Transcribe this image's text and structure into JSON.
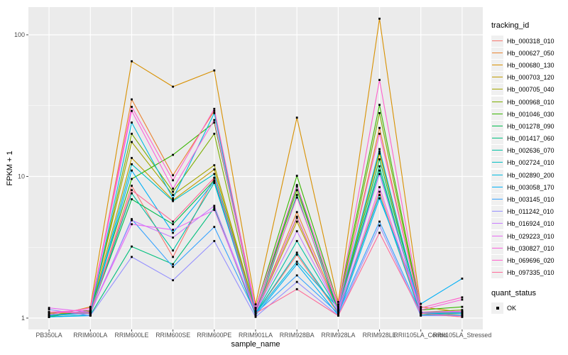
{
  "figure": {
    "background": "#FFFFFF",
    "panel_background": "#EBEBEB",
    "gridline_color": "#FFFFFF",
    "tick_label_color": "#4D4D4D",
    "axis_title_color": "#000000",
    "legend_key_background": "#F0F0F0",
    "point_color": "#000000"
  },
  "chart_data": {
    "type": "line",
    "title": "",
    "xlabel": "sample_name",
    "ylabel": "FPKM + 1",
    "y_scale": "log10",
    "y_ticks": [
      1,
      10,
      100
    ],
    "y_minor_ticks": [
      3.1623,
      31.623
    ],
    "ylim": [
      0.84,
      160
    ],
    "grid": true,
    "legend_position": "right",
    "legend_title": "tracking_id",
    "categories": [
      "PB350LA",
      "RRIM600LA",
      "RRIM600LE",
      "RRIM600SE",
      "RRIM600PE",
      "RRIM901LA",
      "RRIM928BA",
      "RRIM928LA",
      "RRIM928LE",
      "RRII105LA_Control",
      "RRII105LA_Stressed"
    ],
    "series": [
      {
        "name": "Hb_000318_010",
        "color": "#F8766D",
        "values": [
          1.1,
          1.08,
          8.6,
          2.7,
          9.8,
          1.08,
          2.8,
          1.08,
          7.8,
          1.08,
          1.02
        ]
      },
      {
        "name": "Hb_000627_050",
        "color": "#EA8331",
        "values": [
          1.05,
          1.1,
          35,
          10.2,
          29,
          1.1,
          5.6,
          1.15,
          22,
          1.1,
          1.05
        ]
      },
      {
        "name": "Hb_000680_130",
        "color": "#D89000",
        "values": [
          1.02,
          1.2,
          65,
          43,
          56,
          1.25,
          26,
          1.3,
          130,
          1.2,
          1.1
        ]
      },
      {
        "name": "Hb_000703_120",
        "color": "#C09B00",
        "values": [
          1.03,
          1.1,
          13.5,
          6.8,
          11.2,
          1.1,
          4.8,
          1.15,
          14.5,
          1.1,
          1.08
        ]
      },
      {
        "name": "Hb_000705_040",
        "color": "#A3A500",
        "values": [
          1.05,
          1.12,
          17.5,
          7.4,
          12.0,
          1.12,
          5.1,
          1.12,
          15.0,
          1.1,
          1.1
        ]
      },
      {
        "name": "Hb_000968_010",
        "color": "#7CAE00",
        "values": [
          1.08,
          1.1,
          20,
          7.8,
          20,
          1.1,
          8.0,
          1.18,
          28,
          1.1,
          1.14
        ]
      },
      {
        "name": "Hb_001046_030",
        "color": "#39B600",
        "values": [
          1.02,
          1.14,
          9.6,
          14.2,
          24,
          1.18,
          10.1,
          1.25,
          32,
          1.14,
          1.2
        ]
      },
      {
        "name": "Hb_001278_090",
        "color": "#00BB4E",
        "values": [
          1.05,
          1.1,
          6.9,
          4.6,
          9.4,
          1.1,
          8.5,
          1.12,
          13.2,
          1.1,
          1.1
        ]
      },
      {
        "name": "Hb_001417_060",
        "color": "#00BF7D",
        "values": [
          1.02,
          1.05,
          3.2,
          2.4,
          6.0,
          1.05,
          7.4,
          1.1,
          11.8,
          1.05,
          1.1
        ]
      },
      {
        "name": "Hb_002636_070",
        "color": "#00C1A3",
        "values": [
          1.04,
          1.08,
          7.6,
          3.0,
          9.0,
          1.08,
          3.5,
          1.14,
          11.0,
          1.08,
          1.08
        ]
      },
      {
        "name": "Hb_002724_010",
        "color": "#00BFC4",
        "values": [
          1.02,
          1.05,
          12.2,
          6.7,
          10.4,
          1.08,
          2.9,
          1.1,
          7.4,
          1.05,
          1.05
        ]
      },
      {
        "name": "Hb_002890_200",
        "color": "#00BAE0",
        "values": [
          1.05,
          1.08,
          24,
          7.0,
          28,
          1.08,
          2.5,
          1.18,
          15.6,
          1.08,
          1.08
        ]
      },
      {
        "name": "Hb_003058_170",
        "color": "#00B0F6",
        "values": [
          1.02,
          1.04,
          11.0,
          4.0,
          9.2,
          1.05,
          2.4,
          1.05,
          7.0,
          1.26,
          1.9
        ]
      },
      {
        "name": "Hb_003145_010",
        "color": "#35A2FF",
        "values": [
          1.05,
          1.08,
          5.0,
          2.3,
          4.4,
          1.08,
          2.0,
          1.08,
          4.8,
          1.08,
          1.04
        ]
      },
      {
        "name": "Hb_011242_010",
        "color": "#9590FF",
        "values": [
          1.15,
          1.04,
          2.7,
          1.85,
          3.5,
          1.02,
          1.8,
          1.04,
          4.5,
          1.04,
          1.04
        ]
      },
      {
        "name": "Hb_016924_010",
        "color": "#C77CFF",
        "values": [
          1.1,
          1.1,
          4.9,
          3.7,
          6.2,
          1.1,
          4.1,
          1.14,
          10.4,
          1.1,
          1.1
        ]
      },
      {
        "name": "Hb_029223_010",
        "color": "#E76BF3",
        "values": [
          1.18,
          1.1,
          4.6,
          4.2,
          5.8,
          1.1,
          5.2,
          1.1,
          8.4,
          1.1,
          1.12
        ]
      },
      {
        "name": "Hb_030827_010",
        "color": "#FA62DB",
        "values": [
          1.1,
          1.14,
          29,
          8.2,
          25,
          1.14,
          7.1,
          1.2,
          20,
          1.14,
          1.35
        ]
      },
      {
        "name": "Hb_069696_020",
        "color": "#FF61CC",
        "values": [
          1.06,
          1.18,
          31,
          9.4,
          30,
          1.18,
          8.7,
          1.24,
          48,
          1.18,
          1.4
        ]
      },
      {
        "name": "Hb_097335_010",
        "color": "#FF6A98",
        "values": [
          1.1,
          1.08,
          8.0,
          4.8,
          9.8,
          1.08,
          1.6,
          1.04,
          4.0,
          1.08,
          1.02
        ]
      }
    ],
    "quant_status": {
      "title": "quant_status",
      "items": [
        "OK"
      ]
    }
  }
}
